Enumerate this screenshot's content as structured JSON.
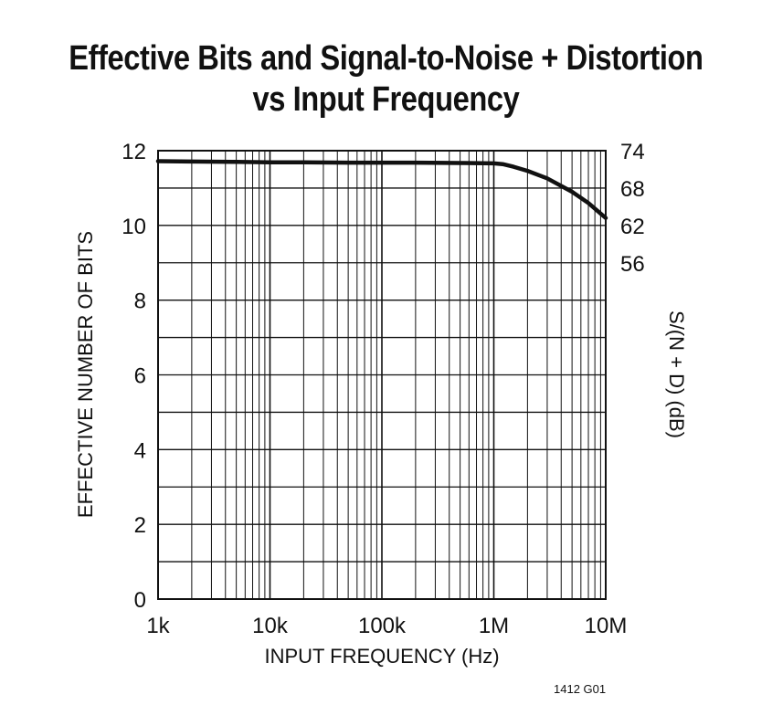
{
  "chart_data": {
    "type": "line",
    "title_lines": [
      "Effective Bits and Signal-to-Noise + Distortion",
      "vs Input Frequency"
    ],
    "xlabel": "INPUT FREQUENCY (Hz)",
    "ylabel": "EFFECTIVE NUMBER OF BITS",
    "y2label": "S/(N + D) (dB)",
    "x_scale": "log",
    "xlim": [
      1000,
      10000000
    ],
    "ylim": [
      0,
      12
    ],
    "x_ticks": [
      {
        "value": 1000,
        "label": "1k"
      },
      {
        "value": 10000,
        "label": "10k"
      },
      {
        "value": 100000,
        "label": "100k"
      },
      {
        "value": 1000000,
        "label": "1M"
      },
      {
        "value": 10000000,
        "label": "10M"
      }
    ],
    "y_ticks": [
      0,
      2,
      4,
      6,
      8,
      10,
      12
    ],
    "y2_ticks": [
      {
        "at_bits": 12,
        "label": "74"
      },
      {
        "at_bits": 11,
        "label": "68"
      },
      {
        "at_bits": 10,
        "label": "62"
      },
      {
        "at_bits": 9,
        "label": "56"
      }
    ],
    "grid": true,
    "series": [
      {
        "x": [
          1000,
          2000,
          5000,
          10000,
          20000,
          50000,
          100000,
          200000,
          500000,
          1000000,
          1200000,
          1500000,
          2000000,
          3000000,
          5000000,
          7000000,
          10000000
        ],
        "y": [
          11.72,
          11.71,
          11.7,
          11.69,
          11.69,
          11.68,
          11.68,
          11.68,
          11.67,
          11.66,
          11.64,
          11.57,
          11.46,
          11.26,
          10.9,
          10.6,
          10.2
        ]
      }
    ]
  },
  "figure_id": "1412 G01",
  "colors": {
    "line": "#111111",
    "grid": "#111111",
    "background": "#ffffff"
  }
}
